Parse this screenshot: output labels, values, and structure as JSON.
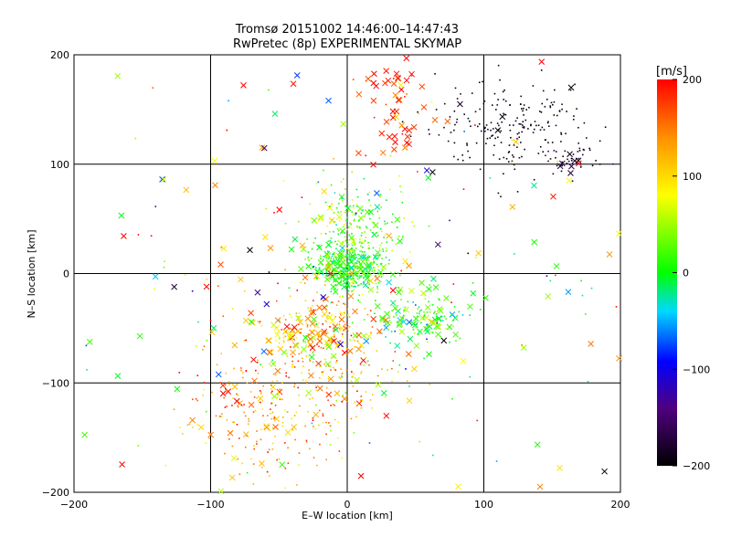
{
  "chart_data": {
    "type": "scatter",
    "title": "Tromsø 20151002 14:46:00–14:47:43",
    "subtitle": "RwPretec (8p) EXPERIMENTAL SKYMAP",
    "xlabel": "E–W location [km]",
    "ylabel": "N–S location [km]",
    "xlim": [
      -200,
      200
    ],
    "ylim": [
      -200,
      200
    ],
    "xticks": [
      -200,
      -100,
      0,
      100,
      200
    ],
    "yticks": [
      -200,
      -100,
      0,
      100,
      200
    ],
    "xtick_labels": [
      "−200",
      "−100",
      "0",
      "100",
      "200"
    ],
    "ytick_labels": [
      "−200",
      "−100",
      "0",
      "100",
      "200"
    ],
    "grid": true,
    "marker_types": [
      "x",
      "dot"
    ],
    "colorbar": {
      "title": "[m/s]",
      "min": -200,
      "max": 200,
      "ticks": [
        -200,
        -100,
        0,
        100,
        200
      ],
      "tick_labels": [
        "−200",
        "−100",
        "0",
        "100",
        "200"
      ],
      "colormap": "black-purple-blue-cyan-green-yellow-orange-red"
    },
    "clusters": [
      {
        "cx": 0,
        "cy": 5,
        "sx": 12,
        "sy": 10,
        "n": 420,
        "v": 10,
        "vs": 25,
        "xfrac": 0.15
      },
      {
        "cx": 5,
        "cy": 40,
        "sx": 18,
        "sy": 18,
        "n": 220,
        "v": 30,
        "vs": 35,
        "xfrac": 0.08
      },
      {
        "cx": 55,
        "cy": -40,
        "sx": 18,
        "sy": 12,
        "n": 140,
        "v": 10,
        "vs": 30,
        "xfrac": 0.35
      },
      {
        "cx": -25,
        "cy": -50,
        "sx": 20,
        "sy": 15,
        "n": 180,
        "v": 130,
        "vs": 45,
        "xfrac": 0.35
      },
      {
        "cx": -60,
        "cy": -120,
        "sx": 30,
        "sy": 35,
        "n": 260,
        "v": 140,
        "vs": 40,
        "xfrac": 0.12
      },
      {
        "cx": -5,
        "cy": -90,
        "sx": 25,
        "sy": 25,
        "n": 120,
        "v": 110,
        "vs": 50,
        "xfrac": 0.1
      },
      {
        "cx": 120,
        "cy": 135,
        "sx": 30,
        "sy": 20,
        "n": 200,
        "v": -190,
        "vs": 10,
        "xfrac": 0.04
      },
      {
        "cx": 165,
        "cy": 105,
        "sx": 12,
        "sy": 8,
        "n": 40,
        "v": -185,
        "vs": 10,
        "xfrac": 0.25
      },
      {
        "cx": 35,
        "cy": 150,
        "sx": 12,
        "sy": 25,
        "n": 50,
        "v": 185,
        "vs": 20,
        "xfrac": 0.85
      },
      {
        "cx": 0,
        "cy": 0,
        "sx": 110,
        "sy": 110,
        "n": 260,
        "v": 40,
        "vs": 130,
        "xfrac": 0.5
      }
    ]
  }
}
